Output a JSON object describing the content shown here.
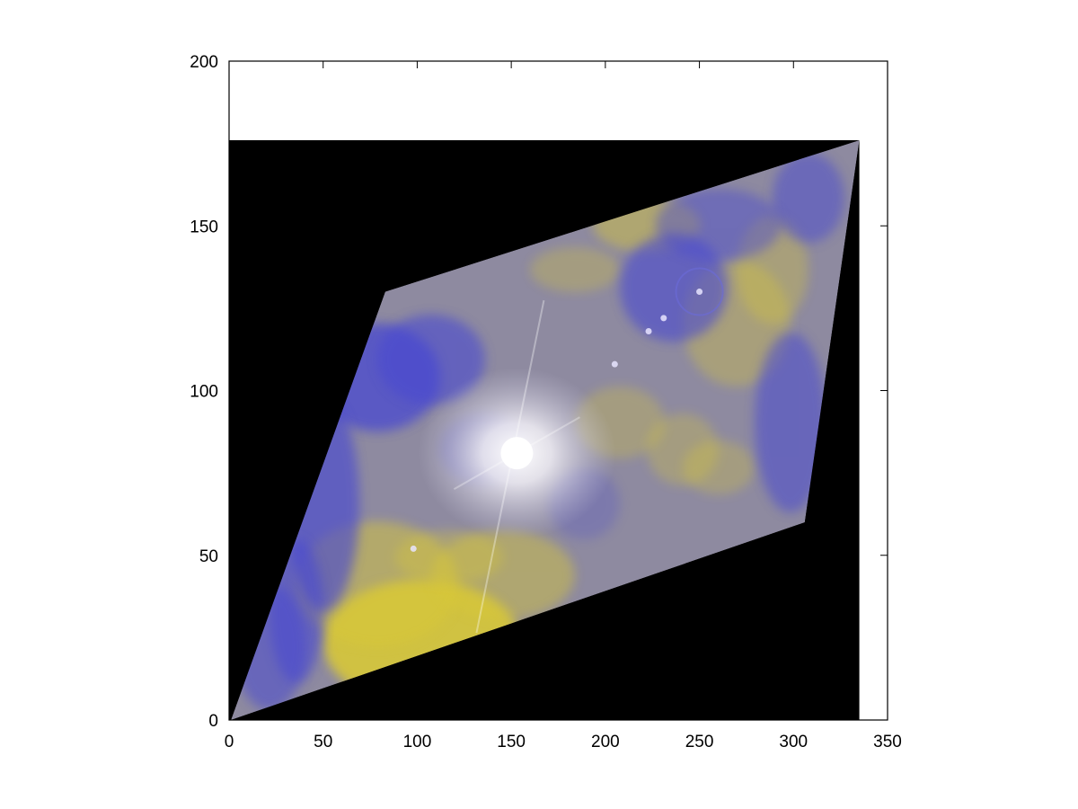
{
  "chart_data": {
    "type": "heatmap",
    "title": "",
    "xlabel": "",
    "ylabel": "",
    "xlim": [
      0,
      350
    ],
    "ylim": [
      0,
      200
    ],
    "x_ticks": [
      0,
      50,
      100,
      150,
      200,
      250,
      300,
      350
    ],
    "y_ticks": [
      0,
      50,
      100,
      150,
      200
    ],
    "x_tick_labels": [
      "0",
      "50",
      "100",
      "150",
      "200",
      "250",
      "300",
      "350"
    ],
    "y_tick_labels": [
      "0",
      "50",
      "100",
      "150",
      "200"
    ],
    "grid": false,
    "legend": "none",
    "image_extent": {
      "x": [
        0,
        335
      ],
      "y": [
        0,
        176
      ]
    },
    "background_color": "#000000",
    "valid_region_polygon": [
      [
        1,
        0
      ],
      [
        83,
        130
      ],
      [
        335,
        176
      ],
      [
        306,
        60
      ]
    ],
    "colormap": [
      "#d8c838",
      "#8e8aa0",
      "#4a4ad0",
      "#ffffff"
    ],
    "bright_spot": {
      "x": 153,
      "y": 81
    },
    "small_features": [
      {
        "x": 223,
        "y": 118
      },
      {
        "x": 231,
        "y": 122
      },
      {
        "x": 98,
        "y": 52
      },
      {
        "x": 205,
        "y": 108
      },
      {
        "x": 250,
        "y": 130
      }
    ]
  }
}
